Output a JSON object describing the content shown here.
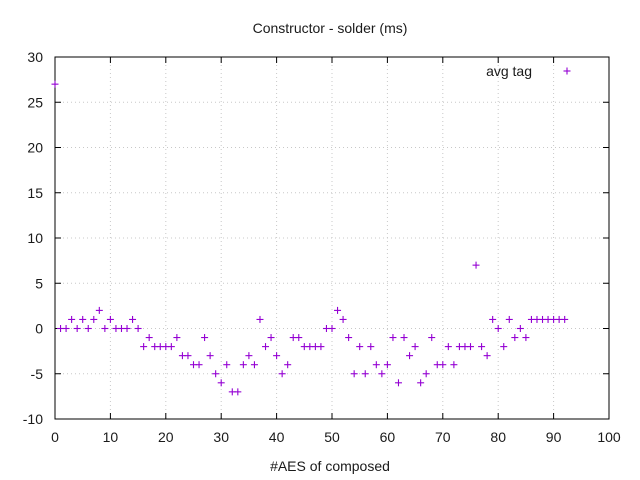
{
  "chart_data": {
    "type": "scatter",
    "title": "Constructor - solder (ms)",
    "xlabel": "#AES of composed",
    "ylabel": "",
    "xlim": [
      0,
      100
    ],
    "ylim": [
      -10,
      30
    ],
    "xticks": [
      0,
      10,
      20,
      30,
      40,
      50,
      60,
      70,
      80,
      90,
      100
    ],
    "yticks": [
      -10,
      -5,
      0,
      5,
      10,
      15,
      20,
      25,
      30
    ],
    "grid": true,
    "legend_position": "top-right",
    "marker": "plus",
    "series": [
      {
        "name": "avg tag",
        "color": "#9400d3",
        "x": [
          0,
          1,
          2,
          3,
          4,
          5,
          6,
          7,
          8,
          9,
          10,
          11,
          12,
          13,
          14,
          15,
          16,
          17,
          18,
          19,
          20,
          21,
          22,
          23,
          24,
          25,
          26,
          27,
          28,
          29,
          30,
          31,
          32,
          33,
          34,
          35,
          36,
          37,
          38,
          39,
          40,
          41,
          42,
          43,
          44,
          45,
          46,
          47,
          48,
          49,
          50,
          51,
          52,
          53,
          54,
          55,
          56,
          57,
          58,
          59,
          60,
          61,
          62,
          63,
          64,
          65,
          66,
          67,
          68,
          69,
          70,
          71,
          72,
          73,
          74,
          75,
          76,
          77,
          78,
          79,
          80,
          81,
          82,
          83,
          84,
          85,
          86,
          87,
          88,
          89,
          90,
          91,
          92
        ],
        "y": [
          27,
          0,
          0,
          1,
          0,
          1,
          0,
          1,
          2,
          0,
          1,
          0,
          0,
          0,
          1,
          0,
          -2,
          -1,
          -2,
          -2,
          -2,
          -2,
          -1,
          -3,
          -3,
          -4,
          -4,
          -1,
          -3,
          -5,
          -6,
          -4,
          -7,
          -7,
          -4,
          -3,
          -4,
          1,
          -2,
          -1,
          -3,
          -5,
          -4,
          -1,
          -1,
          -2,
          -2,
          -2,
          -2,
          0,
          0,
          2,
          1,
          -1,
          -5,
          -2,
          -5,
          -2,
          -4,
          -5,
          -4,
          -1,
          -6,
          -1,
          -3,
          -2,
          -6,
          -5,
          -1,
          -4,
          -4,
          -2,
          -4,
          -2,
          -2,
          -2,
          7,
          -2,
          -3,
          1,
          0,
          -2,
          1,
          -1,
          0,
          -1,
          1,
          1,
          1,
          1,
          1,
          1,
          1
        ]
      }
    ]
  }
}
